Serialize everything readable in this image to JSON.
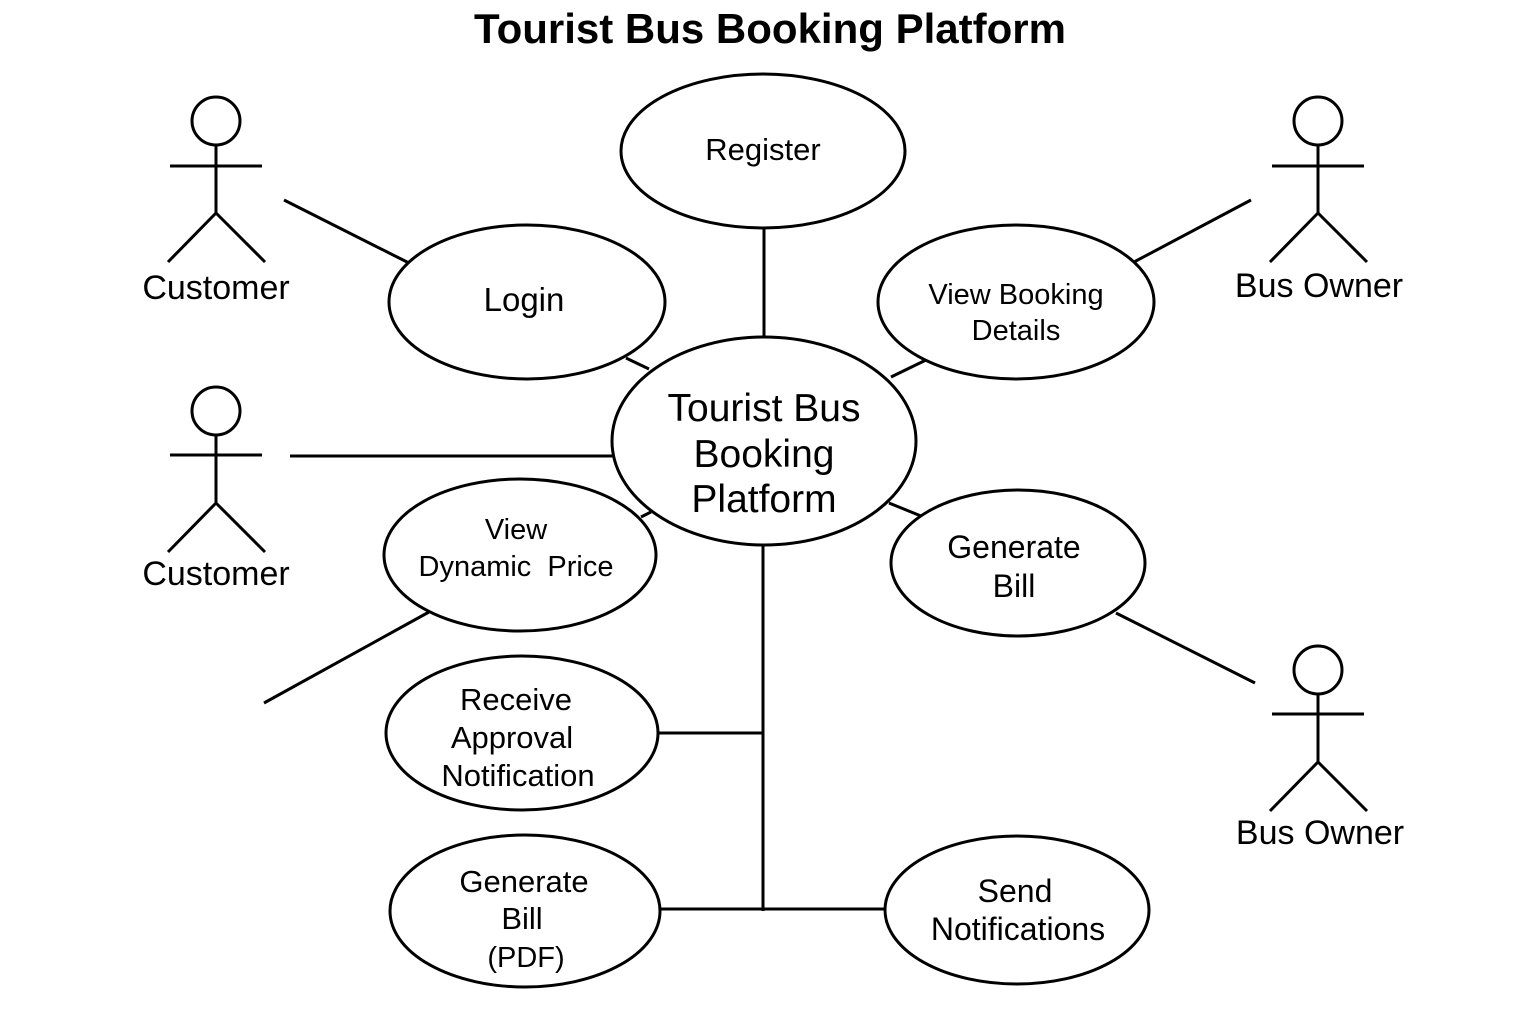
{
  "title": "Tourist Bus Booking Platform",
  "actors": {
    "customer_top": "Customer",
    "customer_middle": "Customer",
    "bus_owner_top": "Bus Owner",
    "bus_owner_bottom": "Bus Owner"
  },
  "system": {
    "line1": "Tourist Bus",
    "line2": "Booking",
    "line3": "Platform"
  },
  "use_cases": {
    "register": {
      "line1": "Register"
    },
    "login": {
      "line1": "Login"
    },
    "view_booking_details": {
      "line1": "View Booking",
      "line2": "Details"
    },
    "view_dynamic_price": {
      "line1": "View",
      "line2": "Dynamic  Price"
    },
    "generate_bill_owner": {
      "line1": "Generate",
      "line2": "Bill"
    },
    "receive_approval_notification": {
      "line1": "Receive",
      "line2": "Approval",
      "line3": "Notification"
    },
    "generate_bill_pdf": {
      "line1": "Generate",
      "line2": "Bill",
      "line3": "(PDF)"
    },
    "send_notifications": {
      "line1": "Send",
      "line2": "Notifications"
    }
  }
}
